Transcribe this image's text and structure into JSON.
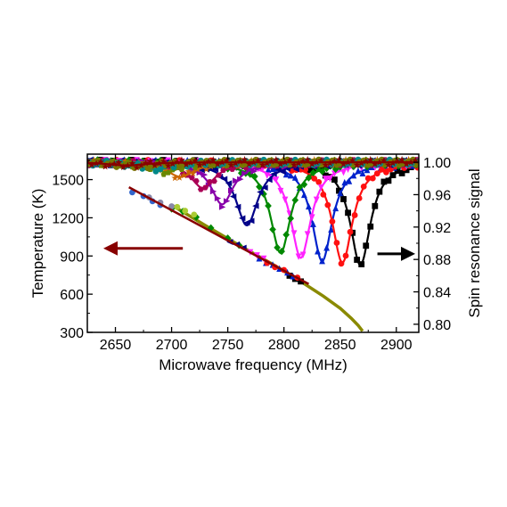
{
  "chart_data": {
    "type": "scatter",
    "xlabel": "Microwave frequency (MHz)",
    "ylabel_left": "Temperature (K)",
    "ylabel_right": "Spin resonance signal",
    "xlim": [
      2625,
      2920
    ],
    "ylim_left": [
      300,
      1700
    ],
    "ylim_right": [
      0.79,
      1.01
    ],
    "x_ticks": [
      "2650",
      "2700",
      "2750",
      "2800",
      "2850",
      "2900"
    ],
    "x_tick_values": [
      2650,
      2700,
      2750,
      2800,
      2850,
      2900
    ],
    "y_left_ticks": [
      "300",
      "600",
      "900",
      "1200",
      "1500"
    ],
    "y_left_tick_values": [
      300,
      600,
      900,
      1200,
      1500
    ],
    "y_right_ticks": [
      "0.80",
      "0.84",
      "0.88",
      "0.92",
      "0.96",
      "1.00"
    ],
    "y_right_tick_values": [
      0.8,
      0.84,
      0.88,
      0.92,
      0.96,
      1.0
    ],
    "grid": false,
    "resonance_series": [
      {
        "axis": "right",
        "color": "#000000",
        "marker": "square",
        "center": 2868,
        "depth": 0.127,
        "width": 11
      },
      {
        "axis": "right",
        "color": "#0022cc",
        "marker": "triangle",
        "center": 2834,
        "depth": 0.122,
        "width": 11
      },
      {
        "axis": "right",
        "color": "#ff1111",
        "marker": "circle",
        "center": 2852,
        "depth": 0.124,
        "width": 11
      },
      {
        "axis": "right",
        "color": "#ff22ff",
        "marker": "triangle-down",
        "center": 2815,
        "depth": 0.118,
        "width": 11
      },
      {
        "axis": "right",
        "color": "#008800",
        "marker": "diamond",
        "center": 2797,
        "depth": 0.112,
        "width": 11
      },
      {
        "axis": "right",
        "color": "#000088",
        "marker": "triangle-left",
        "center": 2767,
        "depth": 0.078,
        "width": 12
      },
      {
        "axis": "right",
        "color": "#8800aa",
        "marker": "triangle-right",
        "center": 2745,
        "depth": 0.052,
        "width": 12
      },
      {
        "axis": "right",
        "color": "#aa0055",
        "marker": "hexagon",
        "center": 2728,
        "depth": 0.032,
        "width": 13
      },
      {
        "axis": "right",
        "color": "#cc6600",
        "marker": "star",
        "center": 2708,
        "depth": 0.018,
        "width": 15
      },
      {
        "axis": "right",
        "color": "#6a8800",
        "marker": "pentagon",
        "center": 2695,
        "depth": 0.012,
        "width": 16
      },
      {
        "axis": "right",
        "color": "#008888",
        "marker": "circle",
        "center": 2685,
        "depth": 0.008,
        "width": 18
      },
      {
        "axis": "right",
        "color": "#777700",
        "marker": "circle",
        "center": 2670,
        "depth": 0.005,
        "width": 20
      },
      {
        "axis": "right",
        "color": "#880000",
        "marker": "star",
        "center": 2660,
        "depth": 0.004,
        "width": 20
      }
    ],
    "temperature_series": [
      {
        "axis": "left",
        "color": "#000000",
        "marker": "square",
        "x": [
          2805,
          2810,
          2815
        ],
        "y": [
          745,
          720,
          700
        ]
      },
      {
        "axis": "left",
        "color": "#0022cc",
        "marker": "triangle",
        "x": [
          2778,
          2784,
          2790,
          2796,
          2803,
          2808
        ],
        "y": [
          880,
          845,
          830,
          800,
          770,
          740
        ]
      },
      {
        "axis": "left",
        "color": "#ff1111",
        "marker": "circle",
        "x": [
          2785,
          2792,
          2800,
          2812
        ],
        "y": [
          845,
          812,
          790,
          730
        ]
      },
      {
        "axis": "left",
        "color": "#ff22ff",
        "marker": "triangle-down",
        "x": [
          2770,
          2776,
          2782
        ],
        "y": [
          930,
          905,
          880
        ]
      },
      {
        "axis": "left",
        "color": "#008800",
        "marker": "diamond",
        "x": [
          2700,
          2710,
          2722,
          2735,
          2750,
          2760
        ],
        "y": [
          1270,
          1250,
          1205,
          1120,
          1040,
          985
        ]
      },
      {
        "axis": "left",
        "color": "#000088",
        "marker": "triangle-left",
        "x": [
          2752,
          2758,
          2764
        ],
        "y": [
          1010,
          990,
          965
        ]
      },
      {
        "axis": "left",
        "color": "#3366cc",
        "marker": "circle",
        "x": [
          2665,
          2675,
          2683,
          2690
        ],
        "y": [
          1400,
          1370,
          1330,
          1300
        ]
      },
      {
        "axis": "left",
        "color": "#8888aa",
        "marker": "circle",
        "x": [
          2680,
          2690,
          2700
        ],
        "y": [
          1360,
          1320,
          1290
        ]
      },
      {
        "axis": "left",
        "color": "#aacc33",
        "marker": "circle",
        "x": [
          2705,
          2712,
          2720
        ],
        "y": [
          1285,
          1255,
          1225
        ]
      }
    ],
    "fit_line": {
      "axis": "left",
      "color": "#880000",
      "x": [
        2662,
        2822
      ],
      "y": [
        1440,
        680
      ]
    },
    "extrapolation_curve": {
      "axis": "left",
      "color": "#8a8a00",
      "x": [
        2700,
        2730,
        2760,
        2790,
        2815,
        2835,
        2850,
        2860,
        2866,
        2870
      ],
      "y": [
        1300,
        1140,
        985,
        835,
        700,
        585,
        490,
        410,
        355,
        310
      ]
    },
    "left_arrow": {
      "color": "#880000",
      "from_x": 2710,
      "to_x": 2627,
      "y": 960
    },
    "right_arrow": {
      "color": "#000000",
      "from_x": 2880,
      "to_x": 2918,
      "y": 0.887
    }
  }
}
